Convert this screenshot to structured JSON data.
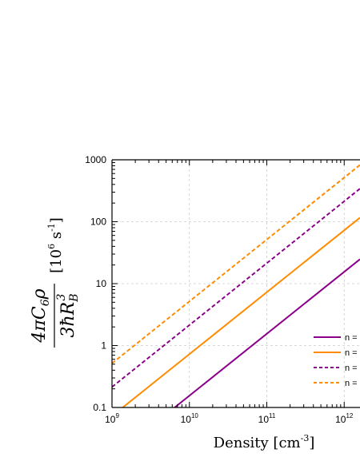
{
  "chart_data": {
    "type": "line",
    "x_scale": "log",
    "y_scale": "log",
    "xlim": [
      1000000000,
      1600000000000
    ],
    "ylim": [
      0.1,
      1000
    ],
    "x_ticks": [
      {
        "value": 1000000000,
        "mantissa": "10",
        "exp": "9"
      },
      {
        "value": 10000000000,
        "mantissa": "10",
        "exp": "10"
      },
      {
        "value": 100000000000,
        "mantissa": "10",
        "exp": "11"
      },
      {
        "value": 1000000000000,
        "mantissa": "10",
        "exp": "12"
      }
    ],
    "y_ticks": [
      {
        "value": 0.1,
        "label": "0.1"
      },
      {
        "value": 1,
        "label": "1"
      },
      {
        "value": 10,
        "label": "10"
      },
      {
        "value": 100,
        "label": "100"
      },
      {
        "value": 1000,
        "label": "1000"
      }
    ],
    "xlabel": {
      "text": "Density [cm",
      "exp": "-3",
      "suffix": "]"
    },
    "ylabel": {
      "unit_prefix": "[10",
      "unit_exp": "6",
      "unit_mid": " s",
      "unit_exp2": "-1",
      "unit_suffix": "]"
    },
    "grid": true,
    "legend_position": "lower-right",
    "series": [
      {
        "name": "n =",
        "color": "#8b008b",
        "dash": "solid",
        "x": [
          1000000000,
          1600000000000
        ],
        "y": [
          0.0155,
          24.8
        ]
      },
      {
        "name": "n =",
        "color": "#ff8c00",
        "dash": "solid",
        "x": [
          1000000000,
          1600000000000
        ],
        "y": [
          0.0727,
          116.3
        ]
      },
      {
        "name": "n =",
        "color": "#8b008b",
        "dash": "dashed",
        "x": [
          1000000000,
          1600000000000
        ],
        "y": [
          0.214,
          342.0
        ]
      },
      {
        "name": "n =",
        "color": "#ff8c00",
        "dash": "dashed",
        "x": [
          1000000000,
          1600000000000
        ],
        "y": [
          0.516,
          825.5
        ]
      }
    ]
  }
}
